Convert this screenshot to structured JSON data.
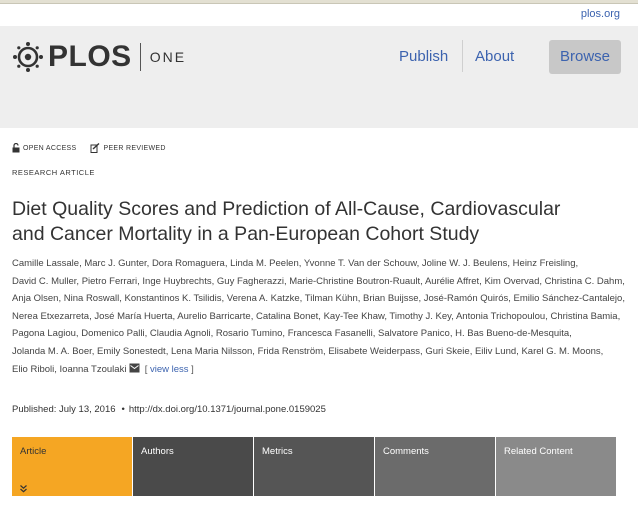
{
  "site": {
    "top_link": "plos.org",
    "logo_word": "PLOS",
    "journal": "ONE"
  },
  "nav": {
    "publish": "Publish",
    "about": "About",
    "browse": "Browse"
  },
  "badges": {
    "open_access": "OPEN ACCESS",
    "peer_reviewed": "PEER REVIEWED"
  },
  "article": {
    "type": "RESEARCH ARTICLE",
    "title_line1": "Diet Quality Scores and Prediction of All-Cause, Cardiovascular",
    "title_line2": "and Cancer Mortality in a Pan-European Cohort Study",
    "authors": [
      "Camille Lassale",
      "Marc J. Gunter",
      "Dora Romaguera",
      "Linda M. Peelen",
      "Yvonne T. Van der Schouw",
      "Joline W. J. Beulens",
      "Heinz Freisling",
      "David C. Muller",
      "Pietro Ferrari",
      "Inge Huybrechts",
      "Guy Fagherazzi",
      "Marie-Christine Boutron-Ruault",
      "Aurélie Affret",
      "Kim Overvad",
      "Christina C. Dahm",
      "Anja Olsen",
      "Nina Roswall",
      "Konstantinos K. Tsilidis",
      "Verena A. Katzke",
      "Tilman Kühn",
      "Brian Buijsse",
      "José-Ramón Quirós",
      "Emilio Sánchez-Cantalejo",
      "Nerea Etxezarreta",
      "José María Huerta",
      "Aurelio Barricarte",
      "Catalina Bonet",
      "Kay-Tee Khaw",
      "Timothy J. Key",
      "Antonia Trichopoulou",
      "Christina Bamia",
      "Pagona Lagiou",
      "Domenico Palli",
      "Claudia Agnoli",
      "Rosario Tumino",
      "Francesca Fasanelli",
      "Salvatore Panico",
      "H. Bas Bueno-de-Mesquita",
      "Jolanda M. A. Boer",
      "Emily Sonestedt",
      "Lena Maria Nilsson",
      "Frida Renström",
      "Elisabete Weiderpass",
      "Guri Skeie",
      "Eiliv Lund",
      "Karel G. M. Moons",
      "Elio Riboli",
      "Ioanna Tzoulaki"
    ],
    "view_less": "view less",
    "published_label": "Published: July 13, 2016",
    "doi": "http://dx.doi.org/10.1371/journal.pone.0159025"
  },
  "tabs": [
    {
      "label": "Article",
      "active": true
    },
    {
      "label": "Authors",
      "active": false
    },
    {
      "label": "Metrics",
      "active": false
    },
    {
      "label": "Comments",
      "active": false
    },
    {
      "label": "Related Content",
      "active": false
    }
  ],
  "colors": {
    "link_blue": "#3c63af",
    "active_tab": "#f5a623",
    "header_bg": "#eeeeee"
  },
  "icons": {
    "logo": "plos-logo-icon",
    "open_access": "unlock-icon",
    "peer_reviewed": "peer-review-icon",
    "corresponding_author": "envelope-icon",
    "tab_expand": "double-chevron-down-icon"
  }
}
